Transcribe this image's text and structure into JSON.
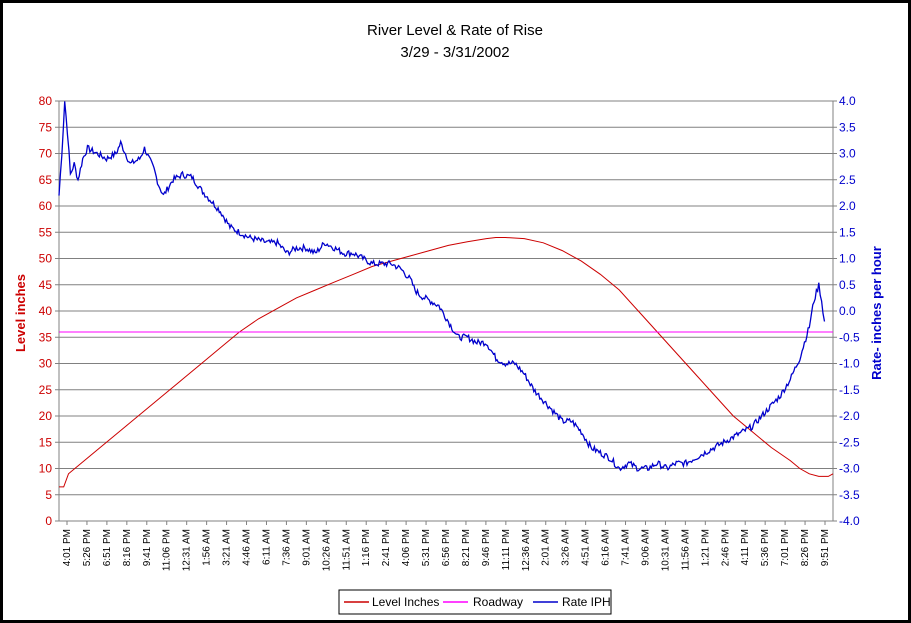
{
  "chart_data": {
    "type": "line",
    "title": "River Level & Rate of Rise",
    "subtitle": "3/29 - 3/31/2002",
    "ylabel_left": "Level inches",
    "ylabel_right": "Rate- inches per hour",
    "ylim_left": [
      0,
      80
    ],
    "ylim_right": [
      -4.0,
      4.0
    ],
    "yticks_left": [
      "0",
      "5",
      "10",
      "15",
      "20",
      "25",
      "30",
      "35",
      "40",
      "45",
      "50",
      "55",
      "60",
      "65",
      "70",
      "75",
      "80"
    ],
    "yticks_right": [
      "-4.0",
      "-3.5",
      "-3.0",
      "-2.5",
      "-2.0",
      "-1.5",
      "-1.0",
      "-0.5",
      "0.0",
      "0.5",
      "1.0",
      "1.5",
      "2.0",
      "2.5",
      "3.0",
      "3.5",
      "4.0"
    ],
    "xticks": [
      "4:01 PM",
      "5:26 PM",
      "6:51 PM",
      "8:16 PM",
      "9:41 PM",
      "11:06 PM",
      "12:31 AM",
      "1:56 AM",
      "3:21 AM",
      "4:46 AM",
      "6:11 AM",
      "7:36 AM",
      "9:01 AM",
      "10:26 AM",
      "11:51 AM",
      "1:16 PM",
      "2:41 PM",
      "4:06 PM",
      "5:31 PM",
      "6:56 PM",
      "8:21 PM",
      "9:46 PM",
      "11:11 PM",
      "12:36 AM",
      "2:01 AM",
      "3:26 AM",
      "4:51 AM",
      "6:16 AM",
      "7:41 AM",
      "9:06 AM",
      "10:31 AM",
      "11:56 AM",
      "1:21 PM",
      "2:46 PM",
      "4:11 PM",
      "5:36 PM",
      "7:01 PM",
      "8:26 PM",
      "9:51 PM"
    ],
    "grid": true,
    "legend_position": "bottom",
    "series": [
      {
        "name": "Level Inches",
        "axis": "left",
        "color": "#cc0000",
        "points": [
          [
            0,
            6.5
          ],
          [
            0.5,
            6.5
          ],
          [
            1,
            9
          ],
          [
            3,
            12
          ],
          [
            5,
            15
          ],
          [
            7,
            18
          ],
          [
            9,
            21
          ],
          [
            11,
            24
          ],
          [
            13,
            27
          ],
          [
            15,
            30
          ],
          [
            17,
            33
          ],
          [
            19,
            36
          ],
          [
            21,
            38.5
          ],
          [
            23,
            40.5
          ],
          [
            25,
            42.5
          ],
          [
            27,
            44
          ],
          [
            29,
            45.5
          ],
          [
            31,
            47
          ],
          [
            33,
            48.5
          ],
          [
            35,
            49.5
          ],
          [
            37,
            50.5
          ],
          [
            39,
            51.5
          ],
          [
            41,
            52.5
          ],
          [
            43,
            53.2
          ],
          [
            45,
            53.8
          ],
          [
            46,
            54
          ],
          [
            47,
            54
          ],
          [
            49,
            53.8
          ],
          [
            51,
            53
          ],
          [
            53,
            51.5
          ],
          [
            55,
            49.5
          ],
          [
            57,
            47
          ],
          [
            59,
            44
          ],
          [
            61,
            40
          ],
          [
            63,
            36
          ],
          [
            65,
            32
          ],
          [
            67,
            28
          ],
          [
            69,
            24
          ],
          [
            71,
            20
          ],
          [
            73,
            17
          ],
          [
            75,
            14
          ],
          [
            77,
            11.5
          ],
          [
            78,
            10
          ],
          [
            79,
            9
          ],
          [
            80,
            8.5
          ],
          [
            81,
            8.5
          ],
          [
            81.5,
            9
          ]
        ]
      },
      {
        "name": "Roadway",
        "axis": "left",
        "color": "#ff00ff",
        "points": [
          [
            0,
            36
          ],
          [
            81.5,
            36
          ]
        ]
      },
      {
        "name": "Rate IPH",
        "axis": "right",
        "color": "#0000cc",
        "points": [
          [
            0,
            2.2
          ],
          [
            0.3,
            3.0
          ],
          [
            0.6,
            4.0
          ],
          [
            0.9,
            3.4
          ],
          [
            1.2,
            2.6
          ],
          [
            1.6,
            2.8
          ],
          [
            2,
            2.5
          ],
          [
            2.5,
            2.9
          ],
          [
            3,
            3.1
          ],
          [
            4,
            3.0
          ],
          [
            5,
            2.9
          ],
          [
            6,
            3.0
          ],
          [
            6.5,
            3.2
          ],
          [
            7,
            3.0
          ],
          [
            7.5,
            2.8
          ],
          [
            8.5,
            2.9
          ],
          [
            9,
            3.1
          ],
          [
            10,
            2.7
          ],
          [
            10.5,
            2.4
          ],
          [
            11,
            2.2
          ],
          [
            12,
            2.5
          ],
          [
            13,
            2.6
          ],
          [
            14,
            2.55
          ],
          [
            15,
            2.3
          ],
          [
            16,
            2.1
          ],
          [
            17,
            1.9
          ],
          [
            18,
            1.6
          ],
          [
            19,
            1.5
          ],
          [
            20,
            1.4
          ],
          [
            21,
            1.35
          ],
          [
            22,
            1.3
          ],
          [
            23,
            1.3
          ],
          [
            24,
            1.1
          ],
          [
            25,
            1.2
          ],
          [
            26,
            1.2
          ],
          [
            27,
            1.1
          ],
          [
            28,
            1.3
          ],
          [
            29,
            1.2
          ],
          [
            30,
            1.1
          ],
          [
            31,
            1.1
          ],
          [
            32,
            1.0
          ],
          [
            33,
            0.9
          ],
          [
            34,
            0.9
          ],
          [
            35,
            0.9
          ],
          [
            36,
            0.8
          ],
          [
            37,
            0.6
          ],
          [
            37.5,
            0.4
          ],
          [
            38,
            0.3
          ],
          [
            39,
            0.2
          ],
          [
            40,
            0.1
          ],
          [
            41,
            -0.2
          ],
          [
            42,
            -0.5
          ],
          [
            43,
            -0.5
          ],
          [
            44,
            -0.6
          ],
          [
            45,
            -0.6
          ],
          [
            46,
            -0.9
          ],
          [
            47,
            -1.0
          ],
          [
            48,
            -1.0
          ],
          [
            49,
            -1.2
          ],
          [
            50,
            -1.5
          ],
          [
            51,
            -1.7
          ],
          [
            52,
            -1.9
          ],
          [
            53,
            -2.1
          ],
          [
            54,
            -2.1
          ],
          [
            55,
            -2.3
          ],
          [
            56,
            -2.6
          ],
          [
            57,
            -2.7
          ],
          [
            58,
            -2.8
          ],
          [
            59,
            -3.0
          ],
          [
            60,
            -2.9
          ],
          [
            61,
            -3.0
          ],
          [
            62,
            -3.0
          ],
          [
            63,
            -2.9
          ],
          [
            64,
            -3.0
          ],
          [
            65,
            -2.9
          ],
          [
            66,
            -2.9
          ],
          [
            67,
            -2.8
          ],
          [
            68,
            -2.7
          ],
          [
            69,
            -2.6
          ],
          [
            70,
            -2.5
          ],
          [
            71,
            -2.4
          ],
          [
            72,
            -2.3
          ],
          [
            73,
            -2.2
          ],
          [
            74,
            -2.0
          ],
          [
            75,
            -1.8
          ],
          [
            76,
            -1.6
          ],
          [
            77,
            -1.3
          ],
          [
            78,
            -0.9
          ],
          [
            79,
            -0.3
          ],
          [
            79.5,
            0.2
          ],
          [
            80,
            0.5
          ],
          [
            80.3,
            0.2
          ],
          [
            80.6,
            -0.2
          ]
        ]
      }
    ]
  }
}
